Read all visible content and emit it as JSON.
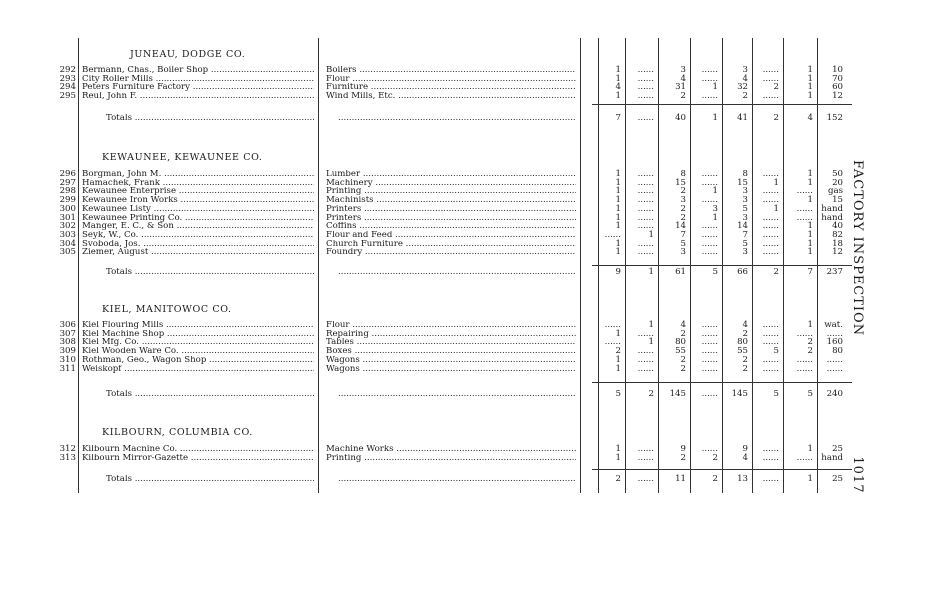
{
  "side_header": {
    "title": "FACTORY INSPECTION",
    "page_number": "1017"
  },
  "totals_label": "Totals",
  "blank": "......",
  "sections": [
    {
      "heading": "JUNEAU, DODGE CO.",
      "rows": [
        {
          "no": "292",
          "name": "Bermann, Chas., Boiler Shop",
          "business": "Boilers",
          "vals": [
            "1",
            "......",
            "3",
            "......",
            "3",
            "......",
            "1",
            "10"
          ]
        },
        {
          "no": "293",
          "name": "City Roller Mills",
          "business": "Flour",
          "vals": [
            "1",
            "......",
            "4",
            "......",
            "4",
            "......",
            "1",
            "70"
          ]
        },
        {
          "no": "294",
          "name": "Peters Furniture Factory",
          "business": "Furniture",
          "vals": [
            "4",
            "......",
            "31",
            "1",
            "32",
            "2",
            "1",
            "60"
          ]
        },
        {
          "no": "295",
          "name": "Reul, John F.",
          "business": "Wind Mills, Etc.",
          "vals": [
            "1",
            "......",
            "2",
            "......",
            "2",
            "......",
            "1",
            "12"
          ]
        }
      ],
      "totals": [
        "7",
        "......",
        "40",
        "1",
        "41",
        "2",
        "4",
        "152"
      ]
    },
    {
      "heading": "KEWAUNEE, KEWAUNEE CO.",
      "rows": [
        {
          "no": "296",
          "name": "Borgman, John M.",
          "business": "Lumber",
          "vals": [
            "1",
            "......",
            "8",
            "......",
            "8",
            "......",
            "1",
            "50"
          ]
        },
        {
          "no": "297",
          "name": "Hamachek, Frank",
          "business": "Machinery",
          "vals": [
            "1",
            "......",
            "15",
            "......",
            "15",
            "1",
            "1",
            "20"
          ]
        },
        {
          "no": "298",
          "name": "Kewaunee Enterprise",
          "business": "Printing",
          "vals": [
            "1",
            "......",
            "2",
            "1",
            "3",
            "......",
            "......",
            "gas"
          ]
        },
        {
          "no": "299",
          "name": "Kewaunee Iron Works",
          "business": "Machinists",
          "vals": [
            "1",
            "......",
            "3",
            "......",
            "3",
            "......",
            "1",
            "15"
          ]
        },
        {
          "no": "300",
          "name": "Kewaunee Listy",
          "business": "Printers",
          "vals": [
            "1",
            "......",
            "2",
            "3",
            "5",
            "1",
            "......",
            "hand"
          ]
        },
        {
          "no": "301",
          "name": "Kewaunee Printing Co.",
          "business": "Printers",
          "vals": [
            "1",
            "......",
            "2",
            "1",
            "3",
            "......",
            "......",
            "hand"
          ]
        },
        {
          "no": "302",
          "name": "Manger, E. C., & Son",
          "business": "Coffins",
          "vals": [
            "1",
            "......",
            "14",
            "......",
            "14",
            "......",
            "1",
            "40"
          ]
        },
        {
          "no": "303",
          "name": "Seyk, W., Co.",
          "business": "Flour and Feed",
          "vals": [
            "......",
            "1",
            "7",
            "......",
            "7",
            "......",
            "1",
            "82"
          ]
        },
        {
          "no": "304",
          "name": "Svoboda, Jos.",
          "business": "Church Furniture",
          "vals": [
            "1",
            "......",
            "5",
            "......",
            "5",
            "......",
            "1",
            "18"
          ]
        },
        {
          "no": "305",
          "name": "Ziemer, August",
          "business": "Foundry",
          "vals": [
            "1",
            "......",
            "3",
            "......",
            "3",
            "......",
            "1",
            "12"
          ]
        }
      ],
      "totals": [
        "9",
        "1",
        "61",
        "5",
        "66",
        "2",
        "7",
        "237"
      ]
    },
    {
      "heading": "KIEL, MANITOWOC CO.",
      "rows": [
        {
          "no": "306",
          "name": "Kiel Flouring Mills",
          "business": "Flour",
          "vals": [
            "......",
            "1",
            "4",
            "......",
            "4",
            "......",
            "1",
            "wat."
          ]
        },
        {
          "no": "307",
          "name": "Kiel Machine Shop",
          "business": "Repairing",
          "vals": [
            "1",
            "......",
            "2",
            "......",
            "2",
            "......",
            "......",
            "......"
          ]
        },
        {
          "no": "308",
          "name": "Kiel Mfg. Co.",
          "business": "Tables",
          "vals": [
            "......",
            "1",
            "80",
            "......",
            "80",
            "......",
            "2",
            "160"
          ]
        },
        {
          "no": "309",
          "name": "Kiel Wooden Ware Co.",
          "business": "Boxes",
          "vals": [
            "2",
            "......",
            "55",
            "......",
            "55",
            "5",
            "2",
            "80"
          ]
        },
        {
          "no": "310",
          "name": "Rothman, Geo., Wagon Shop",
          "business": "Wagons",
          "vals": [
            "1",
            "......",
            "2",
            "......",
            "2",
            "......",
            "......",
            "......"
          ]
        },
        {
          "no": "311",
          "name": "Weiskopf",
          "business": "Wagons",
          "vals": [
            "1",
            "......",
            "2",
            "......",
            "2",
            "......",
            "......",
            "......"
          ]
        }
      ],
      "totals": [
        "5",
        "2",
        "145",
        "......",
        "145",
        "5",
        "5",
        "240"
      ]
    },
    {
      "heading": "KILBOURN, COLUMBIA CO.",
      "rows": [
        {
          "no": "312",
          "name": "Kilbourn Macnine Co.",
          "business": "Machine Works",
          "vals": [
            "1",
            "......",
            "9",
            "......",
            "9",
            "......",
            "1",
            "25"
          ]
        },
        {
          "no": "313",
          "name": "Kilbourn Mirror-Gazette",
          "business": "Printing",
          "vals": [
            "1",
            "......",
            "2",
            "2",
            "4",
            "......",
            "......",
            "hand"
          ]
        }
      ],
      "totals": [
        "2",
        "......",
        "11",
        "2",
        "13",
        "......",
        "1",
        "25"
      ]
    }
  ]
}
